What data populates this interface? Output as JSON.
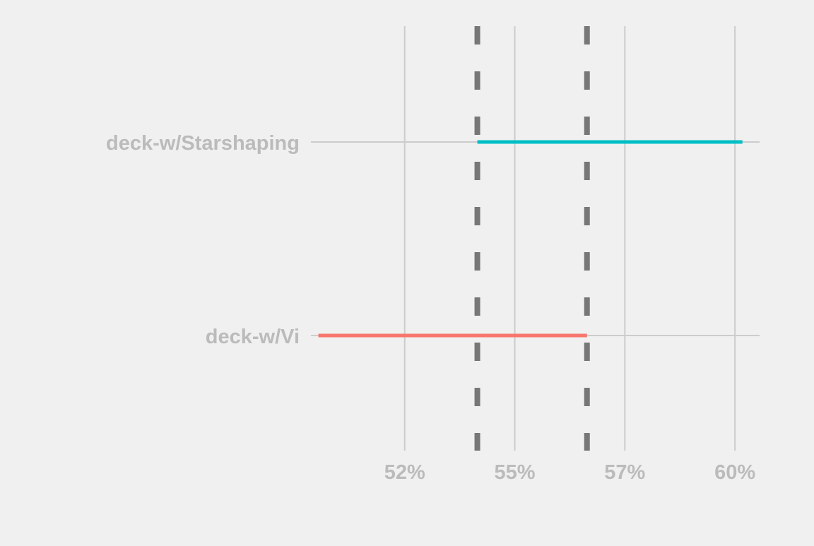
{
  "chart_data": {
    "type": "range",
    "categories": [
      "deck-w/Starshaping",
      "deck-w/Vi"
    ],
    "intervals": [
      {
        "category": "deck-w/Starshaping",
        "low": 0.5415,
        "high": 0.6017,
        "color": "#00bfc4"
      },
      {
        "category": "deck-w/Vi",
        "low": 0.5054,
        "high": 0.5664,
        "color": "#f8766d"
      }
    ],
    "reference_lines": [
      {
        "value": 0.5415,
        "style": "dashed",
        "color": "#777777"
      },
      {
        "value": 0.5664,
        "style": "dashed",
        "color": "#777777"
      }
    ],
    "x_ticks": [
      {
        "value": 0.525,
        "label": "52%"
      },
      {
        "value": 0.55,
        "label": "55%"
      },
      {
        "value": 0.575,
        "label": "57%"
      },
      {
        "value": 0.6,
        "label": "60%"
      }
    ],
    "xlim": [
      0.5037,
      0.6056
    ],
    "grid": true,
    "legend": "none",
    "title": "",
    "xlabel": "",
    "ylabel": "",
    "colors": {
      "background": "#f0f0f0",
      "grid": "#cccccc",
      "tick_label": "#bbbbbb",
      "reference": "#777777"
    }
  }
}
